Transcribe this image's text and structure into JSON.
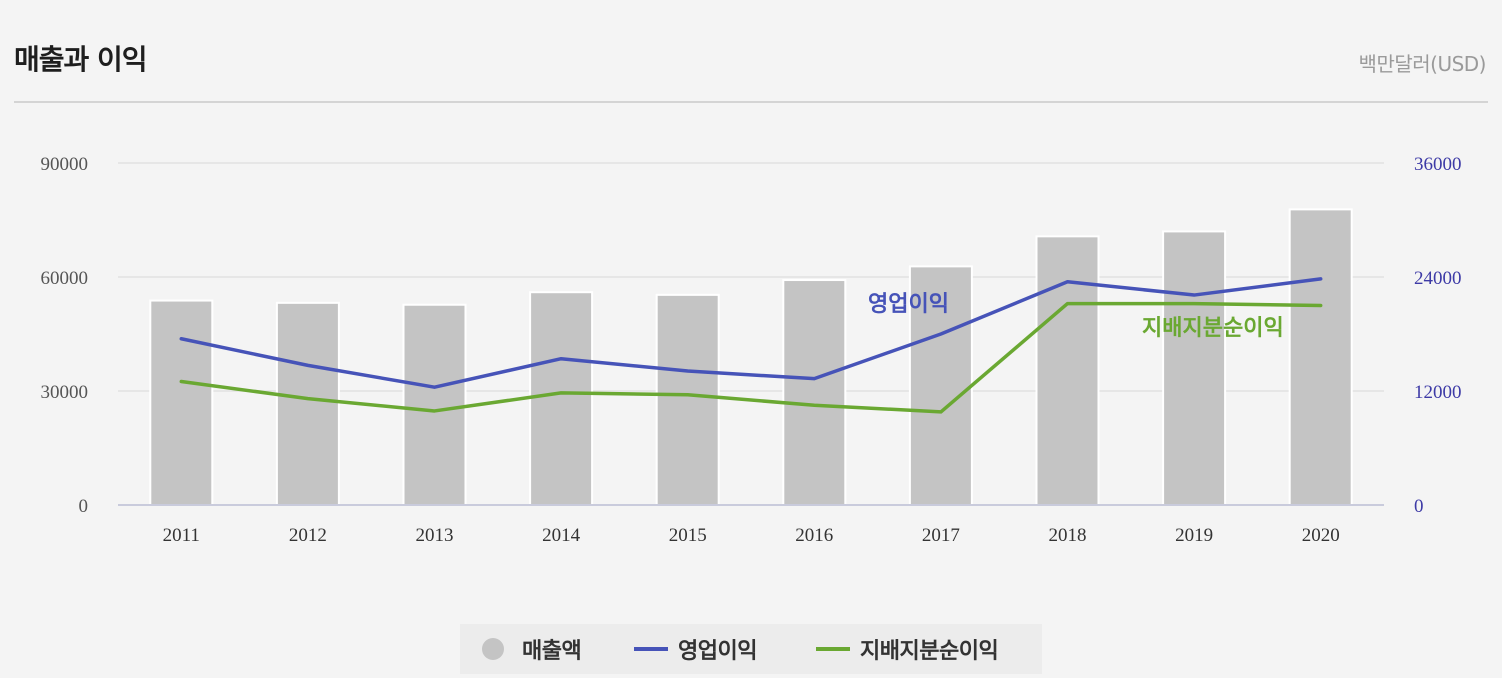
{
  "header": {
    "title": "매출과 이익",
    "unit": "백만달러(USD)"
  },
  "colors": {
    "bar": "#c4c4c4",
    "operating_profit": "#4653b8",
    "net_income": "#6aa832",
    "grid": "#e1e1e1",
    "left_axis_text": "#555555",
    "right_axis_text": "#3d3aa6"
  },
  "chart_data": {
    "type": "bar",
    "categories": [
      "2011",
      "2012",
      "2013",
      "2014",
      "2015",
      "2016",
      "2017",
      "2018",
      "2019",
      "2020"
    ],
    "y_left": {
      "ylim": [
        0,
        90000
      ],
      "ticks": [
        "0",
        "30000",
        "60000",
        "90000"
      ]
    },
    "y_right": {
      "ylim": [
        0,
        36000
      ],
      "ticks": [
        "0",
        "12000",
        "24000",
        "36000"
      ]
    },
    "grid": true,
    "legend_position": "bottom-center",
    "series": [
      {
        "name": "매출액",
        "type": "bar",
        "axis": "left",
        "values": [
          53800,
          53200,
          52700,
          56000,
          55300,
          59200,
          62800,
          70700,
          72000,
          77800
        ]
      },
      {
        "name": "영업이익",
        "type": "line",
        "axis": "right",
        "label": "영업이익",
        "values": [
          17500,
          14700,
          12400,
          15400,
          14100,
          13300,
          18000,
          23500,
          22100,
          23800
        ]
      },
      {
        "name": "지배지분순이익",
        "type": "line",
        "axis": "right",
        "label": "지배지분순이익",
        "values": [
          13000,
          11200,
          9900,
          11800,
          11600,
          10500,
          9800,
          21200,
          21200,
          21000
        ]
      }
    ]
  }
}
